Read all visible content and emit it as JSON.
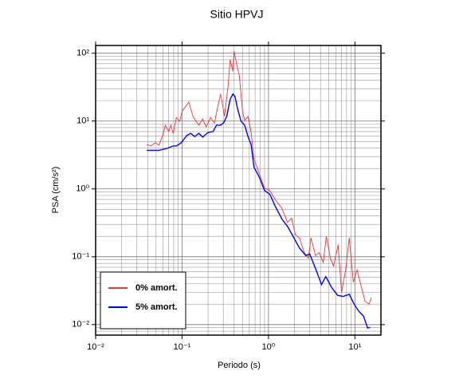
{
  "chart_data": {
    "type": "line",
    "title": "Sitio HPVJ",
    "x_label": "Periodo (s)",
    "y_label": "PSA (cm/s²)",
    "xscale": "log",
    "yscale": "log",
    "grid": true,
    "legend": "lower left",
    "xlim": [
      0.01,
      20
    ],
    "ylim": [
      0.007,
      130
    ],
    "xticks": [
      {
        "value": 0.01,
        "label": "10⁻²"
      },
      {
        "value": 0.1,
        "label": "10⁻¹"
      },
      {
        "value": 1,
        "label": "10⁰"
      },
      {
        "value": 10,
        "label": "10¹"
      }
    ],
    "yticks": [
      {
        "value": 0.01,
        "label": "10⁻²"
      },
      {
        "value": 0.1,
        "label": "10⁻¹"
      },
      {
        "value": 1,
        "label": "10⁰"
      },
      {
        "value": 10,
        "label": "10¹"
      },
      {
        "value": 100,
        "label": "10²"
      }
    ],
    "xminor": [
      0.02,
      0.03,
      0.04,
      0.05,
      0.06,
      0.07,
      0.08,
      0.09,
      0.2,
      0.3,
      0.4,
      0.5,
      0.6,
      0.7,
      0.8,
      0.9,
      2,
      3,
      4,
      5,
      6,
      7,
      8,
      9
    ],
    "yminor": [
      0.008,
      0.009,
      0.02,
      0.03,
      0.04,
      0.05,
      0.06,
      0.07,
      0.08,
      0.09,
      0.2,
      0.3,
      0.4,
      0.5,
      0.6,
      0.7,
      0.8,
      0.9,
      2,
      3,
      4,
      5,
      6,
      7,
      8,
      9,
      20,
      30,
      40,
      50,
      60,
      70,
      80,
      90
    ],
    "series": [
      {
        "name": "0% amort.",
        "color": "#e8383d",
        "x": [
          0.039,
          0.044,
          0.049,
          0.054,
          0.06,
          0.064,
          0.07,
          0.074,
          0.079,
          0.086,
          0.094,
          0.1,
          0.12,
          0.134,
          0.156,
          0.173,
          0.19,
          0.214,
          0.237,
          0.264,
          0.28,
          0.31,
          0.34,
          0.36,
          0.387,
          0.4,
          0.43,
          0.46,
          0.5,
          0.53,
          0.58,
          0.63,
          0.68,
          0.78,
          0.9,
          1.04,
          1.2,
          1.43,
          1.66,
          1.85,
          2.05,
          2.28,
          2.6,
          2.9,
          3.1,
          3.5,
          3.86,
          4.3,
          4.67,
          5.2,
          5.65,
          6.4,
          7.0,
          7.8,
          8.6,
          9.6,
          10.6,
          11.8,
          13.1,
          14.6,
          15.5
        ],
        "values": [
          4.5,
          4.3,
          4.8,
          4.4,
          6.2,
          8.7,
          7.0,
          8.7,
          6.6,
          11.3,
          9.9,
          14,
          19,
          11.7,
          8.7,
          10.7,
          8.2,
          11.3,
          9.4,
          18.5,
          25,
          11.7,
          32,
          81,
          54,
          107,
          67,
          47,
          14,
          10.2,
          11.7,
          6.8,
          2.8,
          1.7,
          1.03,
          0.95,
          0.69,
          0.52,
          0.32,
          0.37,
          0.21,
          0.19,
          0.115,
          0.095,
          0.19,
          0.104,
          0.115,
          0.083,
          0.2,
          0.095,
          0.073,
          0.15,
          0.03,
          0.064,
          0.19,
          0.042,
          0.064,
          0.037,
          0.022,
          0.02,
          0.025
        ]
      },
      {
        "name": "5% amort.",
        "color": "#0000ff",
        "x": [
          0.039,
          0.054,
          0.067,
          0.079,
          0.086,
          0.098,
          0.113,
          0.126,
          0.14,
          0.156,
          0.173,
          0.2,
          0.228,
          0.25,
          0.28,
          0.306,
          0.33,
          0.36,
          0.387,
          0.41,
          0.44,
          0.48,
          0.53,
          0.58,
          0.63,
          0.68,
          0.78,
          0.9,
          1.04,
          1.2,
          1.43,
          1.66,
          1.97,
          2.28,
          2.7,
          3.0,
          3.55,
          4.1,
          4.6,
          5.4,
          6.3,
          7.3,
          8.6,
          9.8,
          11.1,
          12.6,
          14,
          15
        ],
        "values": [
          3.7,
          3.7,
          3.95,
          4.3,
          4.3,
          4.8,
          6.1,
          6.6,
          5.9,
          6.6,
          5.8,
          6.8,
          7.0,
          8.7,
          8.7,
          9.6,
          12,
          21,
          25,
          23,
          15,
          10,
          8.7,
          5.9,
          4.5,
          2.1,
          1.5,
          0.95,
          0.83,
          0.55,
          0.36,
          0.28,
          0.19,
          0.135,
          0.104,
          0.11,
          0.064,
          0.039,
          0.051,
          0.035,
          0.027,
          0.026,
          0.028,
          0.02,
          0.0157,
          0.0133,
          0.0089,
          0.0091
        ]
      }
    ]
  }
}
